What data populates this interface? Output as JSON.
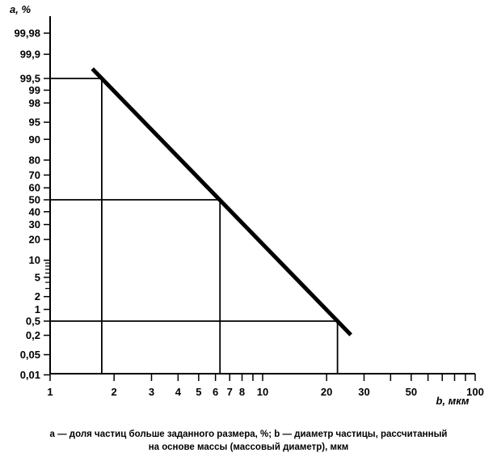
{
  "chart_data": {
    "type": "line",
    "ylabel": "a, %",
    "xlabel": "b, мкм",
    "x_scale": "log",
    "y_scale": "probability",
    "xlim": [
      1,
      100
    ],
    "ylim": [
      0.01,
      99.98
    ],
    "x_ticks": [
      1,
      2,
      3,
      4,
      5,
      6,
      7,
      8,
      10,
      20,
      30,
      50,
      100
    ],
    "x_tick_labels": [
      "1",
      "2",
      "3",
      "4",
      "5",
      "6",
      "7",
      "8",
      "10",
      "20",
      "30",
      "50",
      "100"
    ],
    "x_minor_ticks": [
      9,
      40,
      60,
      70,
      80,
      90
    ],
    "y_ticks": [
      0.01,
      0.05,
      0.2,
      0.5,
      1,
      2,
      5,
      10,
      20,
      30,
      40,
      50,
      60,
      70,
      80,
      90,
      95,
      98,
      99,
      99.5,
      99.9,
      99.98
    ],
    "y_tick_labels": [
      "0,01",
      "0,05",
      "0,2",
      "0,5",
      "1",
      "2",
      "5",
      "10",
      "20",
      "30",
      "40",
      "50",
      "60",
      "70",
      "80",
      "90",
      "95",
      "98",
      "99",
      "99,5",
      "99,9",
      "99,98"
    ],
    "y_minor_ticks": [
      3,
      4,
      6,
      7,
      8,
      9
    ],
    "line": {
      "x_start": 1.58,
      "x_end": 26
    },
    "reference_points": [
      {
        "x": 1.75,
        "y": 99.5
      },
      {
        "x": 6.3,
        "y": 50
      },
      {
        "x": 22.5,
        "y": 0.5
      }
    ],
    "grid": false
  },
  "caption": {
    "line1": "a — доля частиц больше заданного размера, %; b — диаметр частицы, рассчитанный",
    "line2": "на основе массы (массовый диаметр), мкм"
  }
}
